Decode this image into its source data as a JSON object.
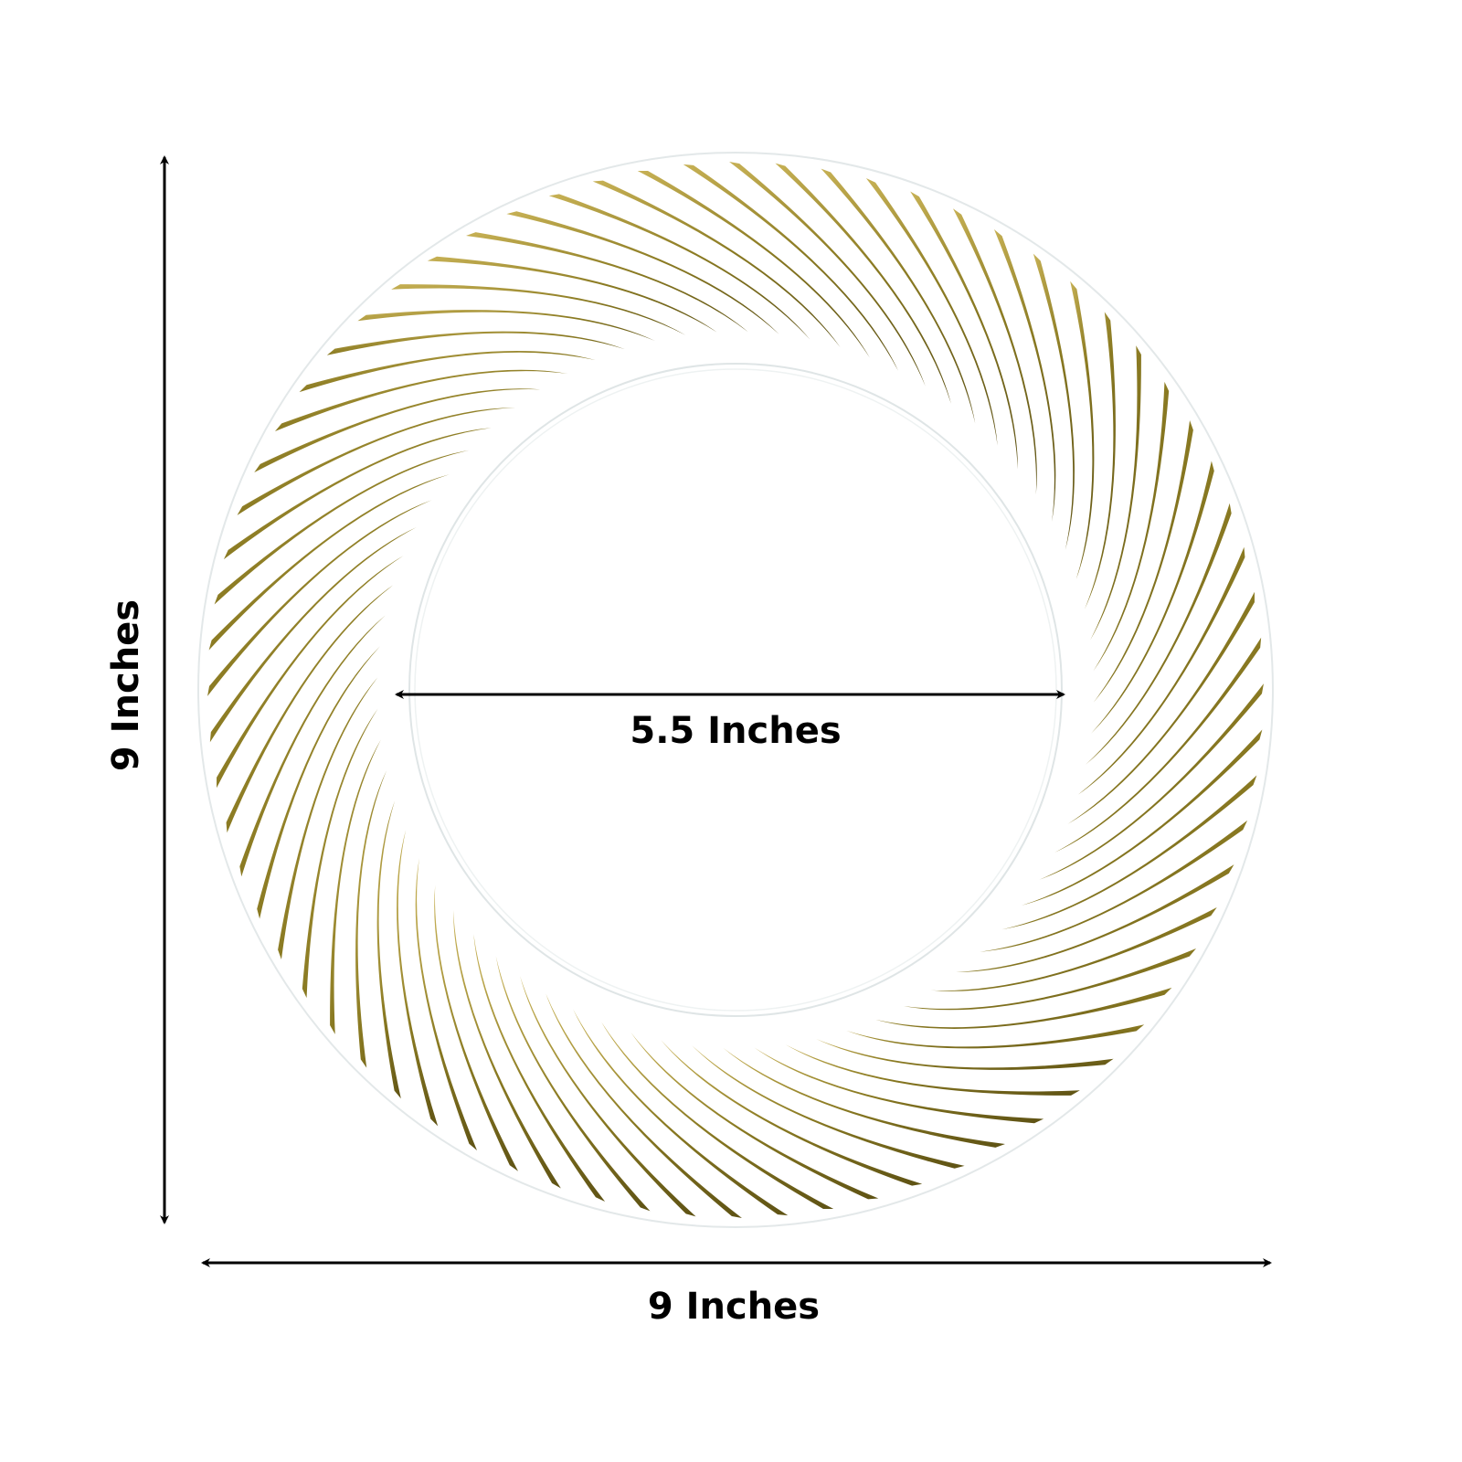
{
  "product": {
    "description_labels": {
      "height": "9 Inches",
      "width": "9 Inches",
      "inner_diameter": "5.5 Inches"
    },
    "colors": {
      "gold_dark": "#6e6118",
      "gold_light": "#c7b155",
      "rim_line": "#dfe5e6",
      "arrow": "#000000"
    },
    "swirl_count": 72
  }
}
